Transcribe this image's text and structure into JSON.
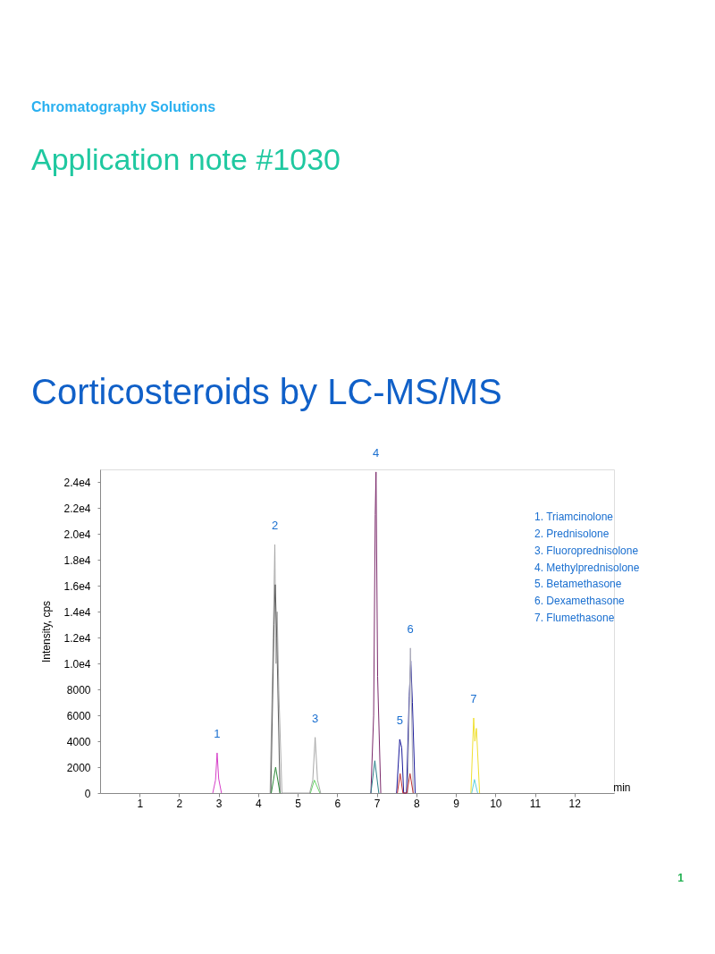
{
  "chart_data": {
    "type": "line",
    "title": "Corticosteroids by LC-MS/MS",
    "subtitle": "Application note #1030",
    "xlabel": "min",
    "ylabel": "Intensity, cps",
    "xlim": [
      0,
      13
    ],
    "xticks": [
      1,
      2,
      3,
      4,
      5,
      6,
      7,
      8,
      9,
      10,
      11,
      12
    ],
    "ylim": [
      0,
      25000
    ],
    "yticks": [
      0,
      2000,
      4000,
      6000,
      8000,
      {
        "value": 10000,
        "label": "1.0e4"
      },
      {
        "value": 12000,
        "label": "1.2e4"
      },
      {
        "value": 14000,
        "label": "1.4e4"
      },
      {
        "value": 16000,
        "label": "1.6e4"
      },
      {
        "value": 18000,
        "label": "1.8e4"
      },
      {
        "value": 20000,
        "label": "2.0e4"
      },
      {
        "value": 22000,
        "label": "2.2e4"
      },
      {
        "value": 24000,
        "label": "2.4e4"
      }
    ],
    "grid": false,
    "legend": false,
    "marker": "none",
    "line_style": "solid",
    "series": [
      {
        "color": "#d63fc8",
        "x": [
          2.85,
          2.92,
          2.96,
          3.0,
          3.07
        ],
        "values": [
          0,
          1000,
          3100,
          1100,
          0
        ]
      },
      {
        "color": "#a8a8a8",
        "x": [
          4.3,
          4.38,
          4.42,
          4.45,
          4.48,
          4.52,
          4.6,
          5.3,
          5.38,
          5.44,
          5.5,
          5.58
        ],
        "values": [
          0,
          12000,
          19200,
          10000,
          14000,
          8000,
          0,
          0,
          1000,
          4300,
          1000,
          0
        ]
      },
      {
        "color": "#606060",
        "x": [
          4.32,
          4.4,
          4.43,
          4.47,
          4.55
        ],
        "values": [
          0,
          13000,
          16100,
          12000,
          0
        ]
      },
      {
        "color": "#2e8b3a",
        "x": [
          4.33,
          4.44,
          4.55
        ],
        "values": [
          0,
          2000,
          0
        ]
      },
      {
        "color": "#6ad46a",
        "x": [
          5.32,
          5.42,
          5.56
        ],
        "values": [
          0,
          1000,
          0
        ]
      },
      {
        "color": "#7b2a6b",
        "x": [
          6.85,
          6.92,
          6.96,
          6.98,
          7.02,
          7.1
        ],
        "values": [
          0,
          6000,
          21500,
          24800,
          9000,
          0
        ]
      },
      {
        "color": "#2a7f8a",
        "x": [
          6.85,
          6.95,
          7.05
        ],
        "values": [
          0,
          2500,
          0
        ]
      },
      {
        "color": "#1a1a9a",
        "x": [
          7.5,
          7.58,
          7.63,
          7.68,
          7.75,
          7.82,
          7.86,
          7.9,
          7.97
        ],
        "values": [
          0,
          4150,
          3500,
          0,
          0,
          7500,
          10200,
          7000,
          0
        ]
      },
      {
        "color": "#a8a8b8",
        "x": [
          7.78,
          7.85,
          7.92
        ],
        "values": [
          0,
          11200,
          0
        ]
      },
      {
        "color": "#c03030",
        "x": [
          7.52,
          7.59,
          7.66,
          7.76,
          7.84,
          7.92
        ],
        "values": [
          0,
          1500,
          0,
          0,
          1500,
          0
        ]
      },
      {
        "color": "#f0e030",
        "x": [
          9.38,
          9.45,
          9.48,
          9.52,
          9.6
        ],
        "values": [
          0,
          5800,
          4000,
          5000,
          0
        ]
      },
      {
        "color": "#60d0e0",
        "x": [
          9.4,
          9.47,
          9.55
        ],
        "values": [
          0,
          1050,
          0
        ]
      }
    ],
    "annotations": [
      "Chromatography Solutions",
      {
        "text": "1",
        "x": 2.96,
        "y": 3100
      },
      {
        "text": "2",
        "x": 4.42,
        "y": 19200
      },
      {
        "text": "3",
        "x": 5.44,
        "y": 4300
      },
      {
        "text": "4",
        "x": 6.98,
        "y": 24800
      },
      {
        "text": "5",
        "x": 7.58,
        "y": 4150
      },
      {
        "text": "6",
        "x": 7.85,
        "y": 11200
      },
      {
        "text": "7",
        "x": 9.45,
        "y": 5800
      },
      "1.  Triamcinolone",
      "2.  Prednisolone",
      "3.  Fluoroprednisolone",
      "4.  Methylprednisolone",
      "5.  Betamethasone",
      "6.  Dexamethasone",
      "7.  Flumethasone",
      "1"
    ]
  }
}
